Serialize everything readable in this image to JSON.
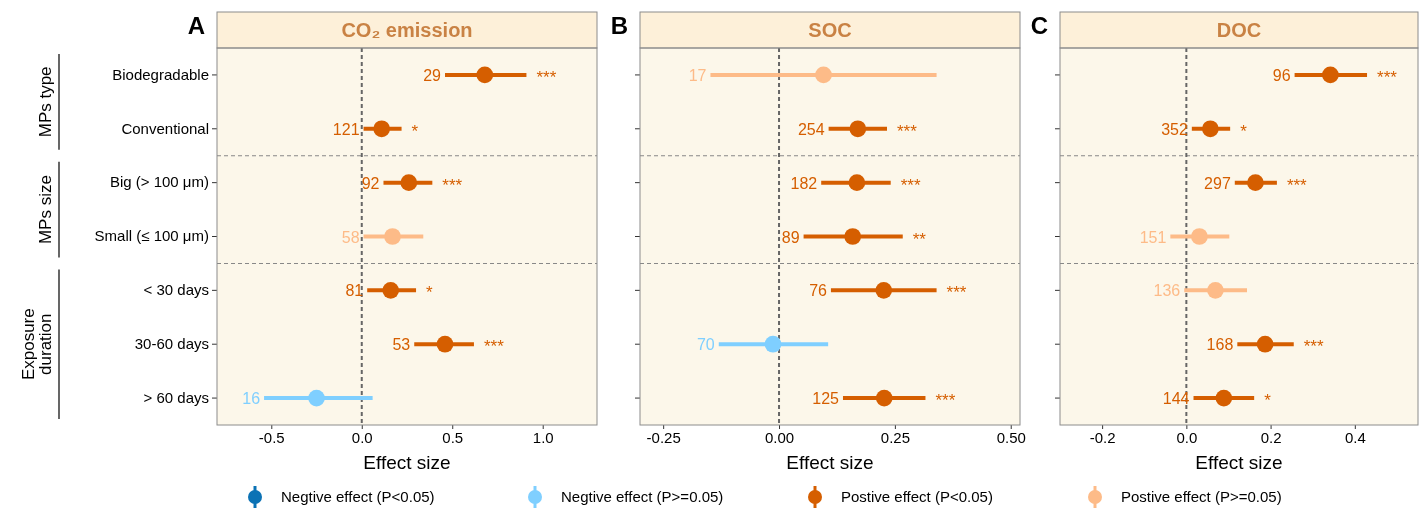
{
  "chart_data": [
    {
      "type": "scatter",
      "orientation": "horizontal",
      "title": "CO₂ emission",
      "xlabel": "Effect size",
      "categories": [
        "Biodegradable",
        "Conventional",
        "Big (> 100 μm)",
        "Small (≤ 100 μm)",
        "< 30 days",
        "30-60 days",
        "> 60 days"
      ],
      "xlim": [
        -0.8,
        1.3
      ],
      "xticks": [
        -0.5,
        {
          "value": 0,
          "label": "0.0"
        },
        0.5,
        {
          "value": 1,
          "label": "1.0"
        }
      ],
      "marker": "circle",
      "legend": "bottom",
      "series": [
        {
          "name": "Negtive effect (P<0.05)",
          "color": "#0b72b5",
          "values": [
            null,
            null,
            null,
            null,
            null,
            null,
            null
          ],
          "errors": [
            null,
            null,
            null,
            null,
            null,
            null,
            null
          ]
        },
        {
          "name": "Negtive effect (P>=0.05)",
          "color": "#7fcfff",
          "values": [
            null,
            null,
            null,
            null,
            null,
            null,
            -0.25
          ],
          "errors": [
            null,
            null,
            null,
            null,
            null,
            null,
            [
              -0.54,
              0.06
            ]
          ]
        },
        {
          "name": "Postive effect (P<0.05)",
          "color": "#d55e00",
          "values": [
            0.68,
            0.11,
            0.26,
            null,
            0.16,
            0.46,
            null
          ],
          "errors": [
            [
              0.46,
              0.91
            ],
            [
              0.01,
              0.22
            ],
            [
              0.12,
              0.39
            ],
            null,
            [
              0.03,
              0.3
            ],
            [
              0.29,
              0.62
            ],
            null
          ]
        },
        {
          "name": "Postive effect (P>=0.05)",
          "color": "#fdbb88",
          "values": [
            null,
            null,
            null,
            0.17,
            null,
            null,
            null
          ],
          "errors": [
            null,
            null,
            null,
            [
              0.01,
              0.34
            ],
            null,
            null,
            null
          ]
        }
      ],
      "ref_lines": [
        {
          "axis": "x",
          "value": 0,
          "line_style": "dashed"
        }
      ],
      "annotations": [
        "A",
        "MPs type",
        "MPs size",
        "Exposure duration",
        "29",
        "121",
        "92",
        "58",
        "81",
        "53",
        "16",
        "***",
        "*",
        "***",
        "*",
        "***"
      ]
    },
    {
      "type": "scatter",
      "orientation": "horizontal",
      "title": "SOC",
      "xlabel": "Effect size",
      "categories": [
        null,
        null,
        null,
        null,
        null,
        null,
        null
      ],
      "xlim": [
        -0.3,
        0.52
      ],
      "xticks": [
        -0.25,
        {
          "value": 0,
          "label": "0.00"
        },
        0.25,
        {
          "value": 0.5,
          "label": "0.50"
        }
      ],
      "tick_labels": "x",
      "marker": "circle",
      "series": [
        {
          "color": "#7fcfff",
          "values": [
            null,
            null,
            null,
            null,
            null,
            -0.013,
            null
          ],
          "errors": [
            null,
            null,
            null,
            null,
            null,
            [
              -0.13,
              0.106
            ],
            null
          ]
        },
        {
          "color": "#d55e00",
          "values": [
            null,
            0.17,
            0.168,
            0.159,
            0.226,
            null,
            0.227
          ],
          "errors": [
            null,
            [
              0.107,
              0.233
            ],
            [
              0.091,
              0.241
            ],
            [
              0.053,
              0.267
            ],
            [
              0.112,
              0.34
            ],
            null,
            [
              0.138,
              0.316
            ]
          ]
        },
        {
          "color": "#fdbb88",
          "values": [
            0.096,
            null,
            null,
            null,
            null,
            null,
            null
          ],
          "errors": [
            [
              -0.148,
              0.34
            ],
            null,
            null,
            null,
            null,
            null,
            null
          ]
        }
      ],
      "ref_lines": [
        {
          "axis": "x",
          "value": 0,
          "line_style": "dashed"
        }
      ],
      "annotations": [
        "B",
        "17",
        "254",
        "182",
        "89",
        "76",
        "70",
        "125",
        "***",
        "***",
        "**",
        "***",
        "***"
      ]
    },
    {
      "type": "scatter",
      "orientation": "horizontal",
      "title": "DOC",
      "xlabel": "Effect size",
      "categories": [
        null,
        null,
        null,
        null,
        null,
        null,
        null
      ],
      "xlim": [
        -0.3,
        0.55
      ],
      "xticks": [
        -0.2,
        {
          "value": 0,
          "label": "0.0"
        },
        0.2,
        0.4
      ],
      "tick_labels": "x",
      "marker": "circle",
      "series": [
        {
          "color": "#d55e00",
          "values": [
            0.342,
            0.057,
            0.164,
            null,
            null,
            0.187,
            0.089
          ],
          "errors": [
            [
              0.257,
              0.429
            ],
            [
              0.013,
              0.104
            ],
            [
              0.115,
              0.215
            ],
            null,
            null,
            [
              0.121,
              0.255
            ],
            [
              0.017,
              0.161
            ]
          ]
        },
        {
          "color": "#fdbb88",
          "values": [
            null,
            null,
            null,
            0.031,
            0.069,
            null,
            null
          ],
          "errors": [
            null,
            null,
            null,
            [
              -0.038,
              0.102
            ],
            [
              -0.005,
              0.144
            ],
            null,
            null
          ]
        }
      ],
      "ref_lines": [
        {
          "axis": "x",
          "value": 0,
          "line_style": "dashed"
        }
      ],
      "annotations": [
        "C",
        "96",
        "352",
        "297",
        "151",
        "136",
        "168",
        "144",
        "***",
        "*",
        "***",
        "***",
        "*"
      ]
    }
  ]
}
